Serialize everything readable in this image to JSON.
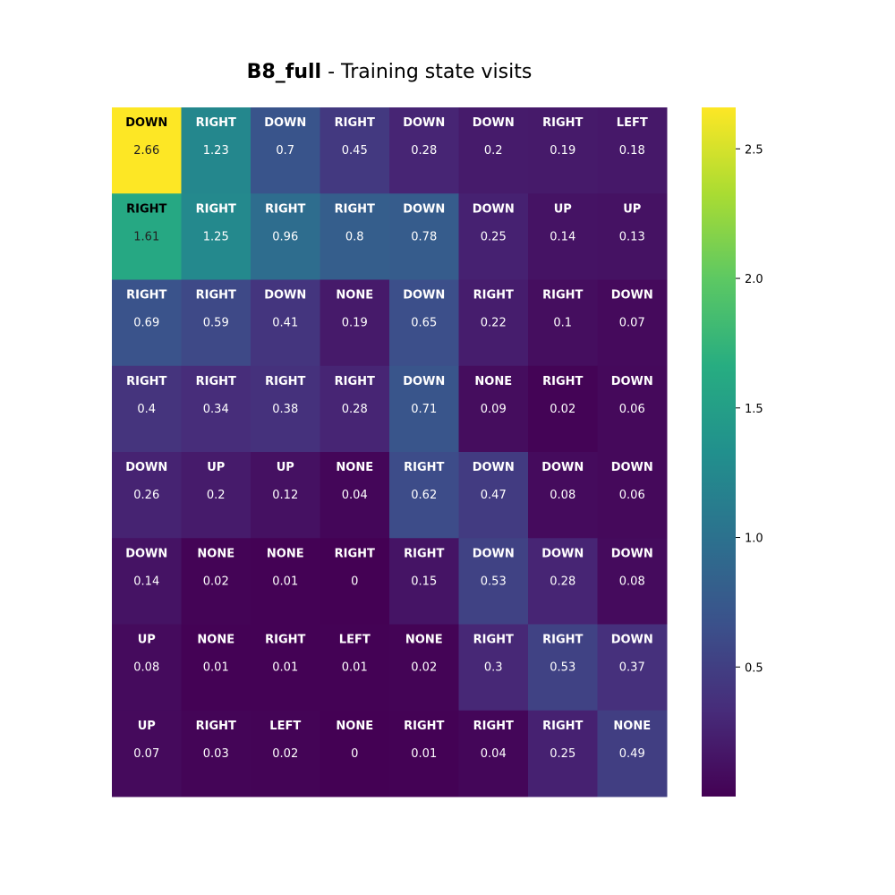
{
  "chart_data": {
    "type": "heatmap",
    "title": {
      "bold": "B8_full",
      "rest": " - Training state visits"
    },
    "rows": 8,
    "cols": 8,
    "values": [
      [
        2.66,
        1.23,
        0.7,
        0.45,
        0.28,
        0.2,
        0.19,
        0.18
      ],
      [
        1.61,
        1.25,
        0.96,
        0.8,
        0.78,
        0.25,
        0.14,
        0.13
      ],
      [
        0.69,
        0.59,
        0.41,
        0.19,
        0.65,
        0.22,
        0.1,
        0.07
      ],
      [
        0.4,
        0.34,
        0.38,
        0.28,
        0.71,
        0.09,
        0.02,
        0.06
      ],
      [
        0.26,
        0.2,
        0.12,
        0.04,
        0.62,
        0.47,
        0.08,
        0.06
      ],
      [
        0.14,
        0.02,
        0.01,
        0,
        0.15,
        0.53,
        0.28,
        0.08
      ],
      [
        0.08,
        0.01,
        0.01,
        0.01,
        0.02,
        0.3,
        0.53,
        0.37
      ],
      [
        0.07,
        0.03,
        0.02,
        0,
        0.01,
        0.04,
        0.25,
        0.49
      ]
    ],
    "actions": [
      [
        "DOWN",
        "RIGHT",
        "DOWN",
        "RIGHT",
        "DOWN",
        "DOWN",
        "RIGHT",
        "LEFT"
      ],
      [
        "RIGHT",
        "RIGHT",
        "RIGHT",
        "RIGHT",
        "DOWN",
        "DOWN",
        "UP",
        "UP"
      ],
      [
        "RIGHT",
        "RIGHT",
        "DOWN",
        "NONE",
        "DOWN",
        "RIGHT",
        "RIGHT",
        "DOWN"
      ],
      [
        "RIGHT",
        "RIGHT",
        "RIGHT",
        "RIGHT",
        "DOWN",
        "NONE",
        "RIGHT",
        "DOWN"
      ],
      [
        "DOWN",
        "UP",
        "UP",
        "NONE",
        "RIGHT",
        "DOWN",
        "DOWN",
        "DOWN"
      ],
      [
        "DOWN",
        "NONE",
        "NONE",
        "RIGHT",
        "RIGHT",
        "DOWN",
        "DOWN",
        "DOWN"
      ],
      [
        "UP",
        "NONE",
        "RIGHT",
        "LEFT",
        "NONE",
        "RIGHT",
        "RIGHT",
        "DOWN"
      ],
      [
        "UP",
        "RIGHT",
        "LEFT",
        "NONE",
        "RIGHT",
        "RIGHT",
        "RIGHT",
        "NONE"
      ]
    ],
    "colorscale": "viridis",
    "colorbar": {
      "range": [
        0,
        2.66
      ],
      "ticks": [
        0.5,
        1.0,
        1.5,
        2.0,
        2.5
      ],
      "tick_labels": [
        "0.5",
        "1.0",
        "1.5",
        "2.0",
        "2.5"
      ]
    },
    "grid": false
  }
}
